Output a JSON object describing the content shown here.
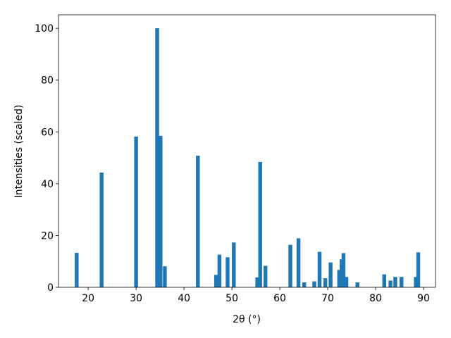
{
  "chart_data": {
    "type": "bar",
    "xlabel": "2θ (°)",
    "ylabel": "Intensities (scaled)",
    "x": [
      17.6,
      22.8,
      30.0,
      34.4,
      35.1,
      36.0,
      42.9,
      46.7,
      47.4,
      49.1,
      50.4,
      55.3,
      55.9,
      57.0,
      62.2,
      63.9,
      65.1,
      67.2,
      68.3,
      69.5,
      70.6,
      72.4,
      72.9,
      73.3,
      73.9,
      76.2,
      81.8,
      83.1,
      84.1,
      85.4,
      88.4,
      88.9
    ],
    "values": [
      13.3,
      44.3,
      58.2,
      100,
      58.5,
      8.1,
      50.8,
      4.8,
      12.6,
      11.6,
      17.3,
      3.8,
      48.4,
      8.3,
      16.4,
      18.9,
      1.9,
      2.3,
      13.7,
      3.5,
      9.6,
      6.7,
      10.8,
      13.2,
      4.0,
      1.9,
      5.0,
      2.6,
      4.0,
      4.0,
      4.0,
      13.5
    ],
    "color": "#1f77b4",
    "xlim": [
      13.8,
      92.5
    ],
    "xticks": [
      20,
      30,
      40,
      50,
      60,
      70,
      80,
      90
    ],
    "ylim": [
      0,
      105.2
    ],
    "yticks": [
      0,
      20,
      40,
      60,
      80,
      100
    ],
    "grid": false
  }
}
